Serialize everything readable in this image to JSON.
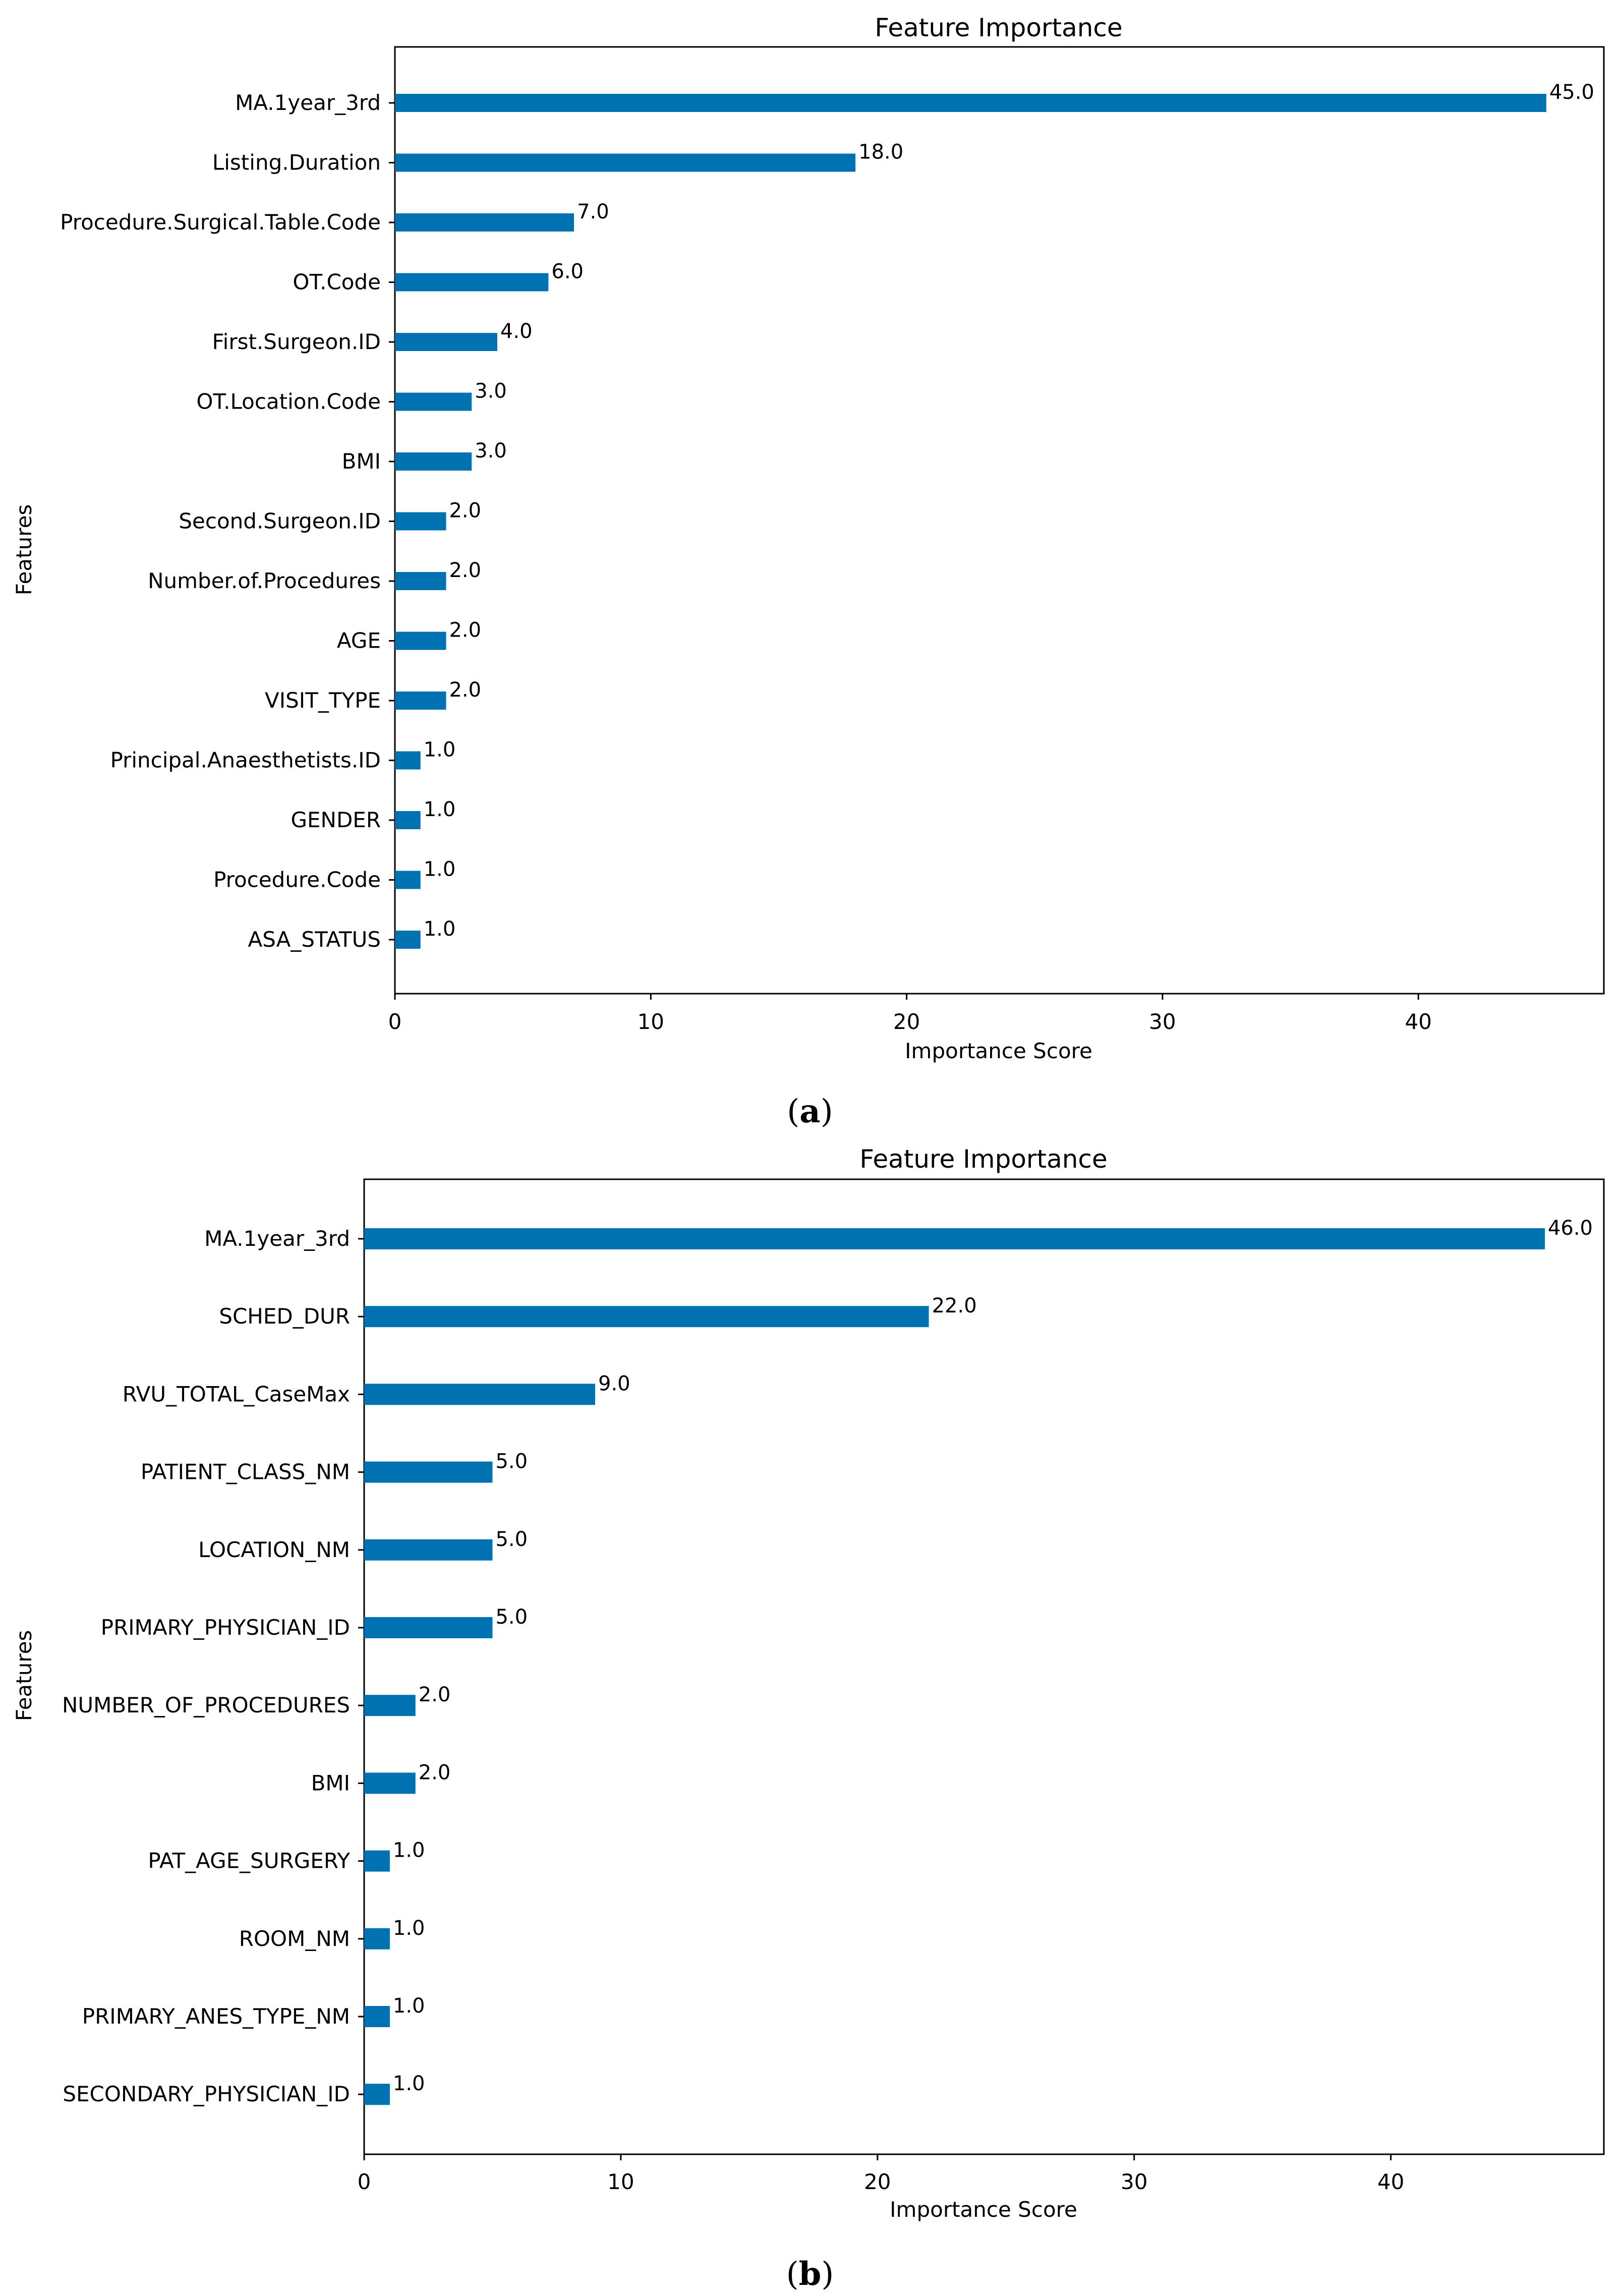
{
  "colors": {
    "bar": "#0072b2",
    "axis": "#000000",
    "background": "#ffffff"
  },
  "chart_data": [
    {
      "type": "bar",
      "orientation": "horizontal",
      "title": "Feature Importance",
      "xlabel": "Importance Score",
      "ylabel": "Features",
      "caption_open": "(",
      "caption_letter": "a",
      "caption_close": ")",
      "xlim": [
        0,
        47.25
      ],
      "xticks": [
        0,
        10,
        20,
        30,
        40
      ],
      "grid": false,
      "categories": [
        "MA.1year_3rd",
        "Listing.Duration",
        "Procedure.Surgical.Table.Code",
        "OT.Code",
        "First.Surgeon.ID",
        "OT.Location.Code",
        "BMI",
        "Second.Surgeon.ID",
        "Number.of.Procedures",
        "AGE",
        "VISIT_TYPE",
        "Principal.Anaesthetists.ID",
        "GENDER",
        "Procedure.Code",
        "ASA_STATUS"
      ],
      "values": [
        45.0,
        18.0,
        7.0,
        6.0,
        4.0,
        3.0,
        3.0,
        2.0,
        2.0,
        2.0,
        2.0,
        1.0,
        1.0,
        1.0,
        1.0
      ],
      "value_labels": [
        "45.0",
        "18.0",
        "7.0",
        "6.0",
        "4.0",
        "3.0",
        "3.0",
        "2.0",
        "2.0",
        "2.0",
        "2.0",
        "1.0",
        "1.0",
        "1.0",
        "1.0"
      ]
    },
    {
      "type": "bar",
      "orientation": "horizontal",
      "title": "Feature Importance",
      "xlabel": "Importance Score",
      "ylabel": "Features",
      "caption_open": "(",
      "caption_letter": "b",
      "caption_close": ")",
      "xlim": [
        0,
        48.3
      ],
      "xticks": [
        0,
        10,
        20,
        30,
        40
      ],
      "grid": false,
      "categories": [
        "MA.1year_3rd",
        "SCHED_DUR",
        "RVU_TOTAL_CaseMax",
        "PATIENT_CLASS_NM",
        "LOCATION_NM",
        "PRIMARY_PHYSICIAN_ID",
        "NUMBER_OF_PROCEDURES",
        "BMI",
        "PAT_AGE_SURGERY",
        "ROOM_NM",
        "PRIMARY_ANES_TYPE_NM",
        "SECONDARY_PHYSICIAN_ID"
      ],
      "values": [
        46.0,
        22.0,
        9.0,
        5.0,
        5.0,
        5.0,
        2.0,
        2.0,
        1.0,
        1.0,
        1.0,
        1.0
      ],
      "value_labels": [
        "46.0",
        "22.0",
        "9.0",
        "5.0",
        "5.0",
        "5.0",
        "2.0",
        "2.0",
        "1.0",
        "1.0",
        "1.0",
        "1.0"
      ]
    }
  ]
}
